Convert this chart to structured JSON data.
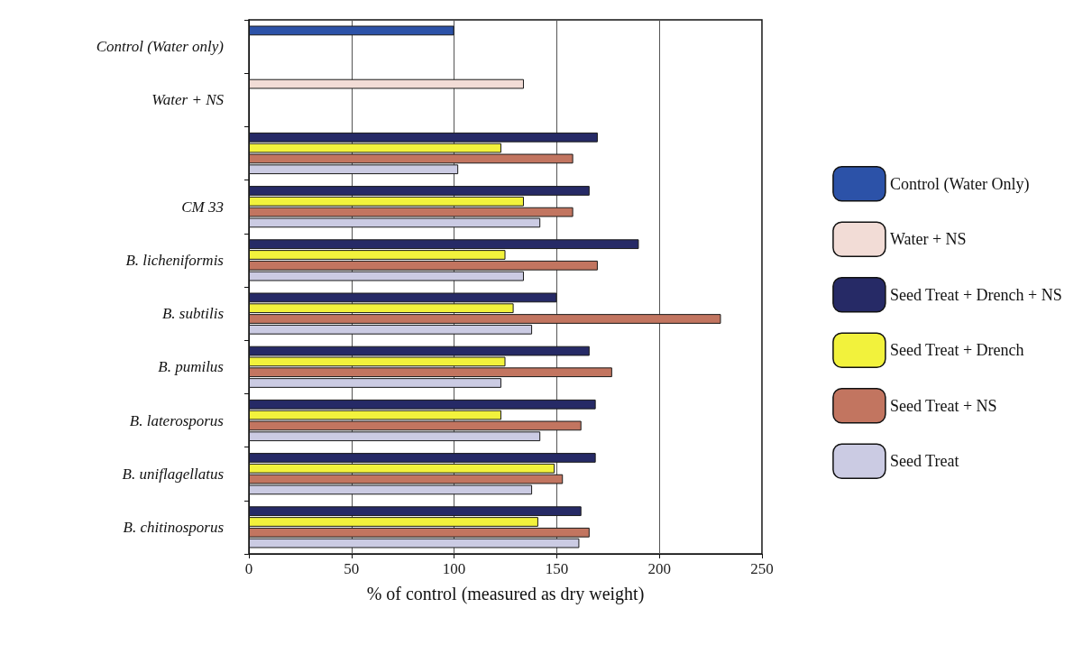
{
  "chart_data": {
    "type": "bar",
    "orientation": "horizontal",
    "xlabel": "% of control (measured as dry weight)",
    "categories": [
      "Control (Water only)",
      "Water + NS",
      null,
      "CM 33",
      "B. licheniformis",
      "B. subtilis",
      "B. pumilus",
      "B. laterosporus",
      "B. uniflagellatus",
      "B. chitinosporus"
    ],
    "series": [
      {
        "name": "Control (Water Only)",
        "color": "#2c52a8",
        "values": [
          100,
          null,
          null,
          null,
          null,
          null,
          null,
          null,
          null,
          null
        ]
      },
      {
        "name": "Water + NS",
        "color": "#f2dcd6",
        "values": [
          null,
          134,
          null,
          null,
          null,
          null,
          null,
          null,
          null,
          null
        ]
      },
      {
        "name": "Seed Treat + Drench + NS",
        "color": "#262a66",
        "values": [
          null,
          null,
          170,
          166,
          190,
          150,
          166,
          169,
          169,
          162
        ]
      },
      {
        "name": "Seed Treat + Drench",
        "color": "#f2f23c",
        "values": [
          null,
          null,
          123,
          134,
          125,
          129,
          125,
          123,
          149,
          141
        ]
      },
      {
        "name": "Seed Treat + NS",
        "color": "#c27560",
        "values": [
          null,
          null,
          158,
          158,
          170,
          230,
          177,
          162,
          153,
          166
        ]
      },
      {
        "name": "Seed Treat",
        "color": "#cbcbe3",
        "values": [
          null,
          null,
          102,
          142,
          134,
          138,
          123,
          142,
          138,
          161
        ]
      }
    ],
    "xlim": [
      0,
      250
    ],
    "xticks": [
      0,
      50,
      100,
      150,
      200,
      250
    ],
    "grid": "x",
    "legend": "right"
  }
}
